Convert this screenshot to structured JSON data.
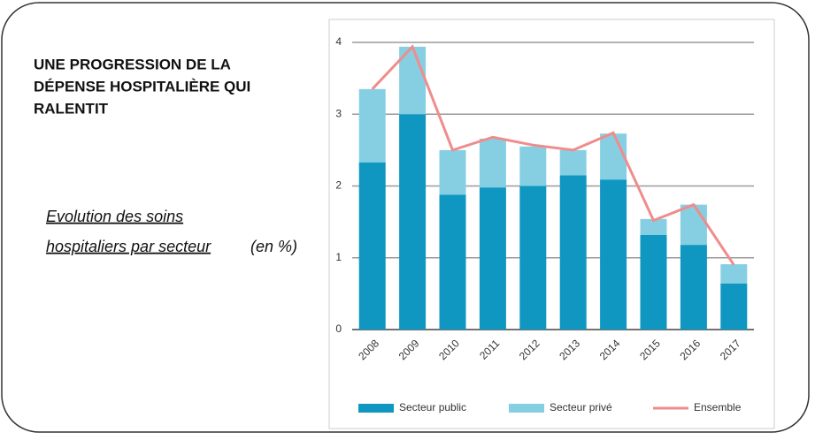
{
  "title_lines": [
    "UNE PROGRESSION DE LA",
    "DÉPENSE HOSPITALIÈRE QUI",
    "RALENTIT"
  ],
  "subtitle_lines": [
    "Evolution des soins",
    "hospitaliers par secteur"
  ],
  "subtitle_unit": "(en %)",
  "chart_data": {
    "type": "bar",
    "stacked": true,
    "grid": true,
    "legend": "bottom",
    "categories": [
      "2008",
      "2009",
      "2010",
      "2011",
      "2012",
      "2013",
      "2014",
      "2015",
      "2016",
      "2017"
    ],
    "ylim": [
      0,
      4
    ],
    "yticks": [
      0,
      1,
      2,
      3,
      4
    ],
    "series": [
      {
        "name": "Secteur public",
        "type": "bar",
        "color": "#0f97c1",
        "values": [
          2.33,
          3.0,
          1.88,
          1.98,
          2.0,
          2.15,
          2.09,
          1.32,
          1.18,
          0.64
        ]
      },
      {
        "name": "Secteur privé",
        "type": "bar",
        "color": "#86cfe3",
        "values": [
          1.02,
          0.94,
          0.62,
          0.68,
          0.55,
          0.35,
          0.64,
          0.22,
          0.56,
          0.27
        ]
      },
      {
        "name": "Ensemble",
        "type": "line",
        "color": "#f08c8c",
        "values": [
          3.35,
          3.94,
          2.5,
          2.68,
          2.57,
          2.5,
          2.74,
          1.52,
          1.74,
          0.9
        ]
      }
    ]
  }
}
